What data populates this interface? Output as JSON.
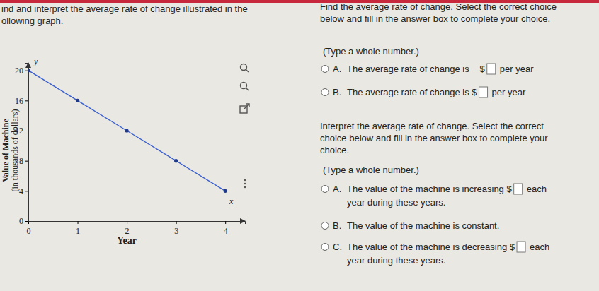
{
  "chart_data": {
    "type": "line",
    "x": [
      0,
      1,
      2,
      3,
      4
    ],
    "values": [
      20,
      16,
      12,
      8,
      4
    ],
    "x_label": "Year",
    "y_label": [
      "Value of Machine",
      "(in thousands of dollars)"
    ],
    "axis_letters": {
      "x": "x",
      "y": "y"
    },
    "xlim": [
      0,
      4.4
    ],
    "ylim": [
      0,
      21
    ],
    "xticks": [
      0,
      1,
      2,
      3,
      4
    ],
    "yticks": [
      0,
      4,
      8,
      12,
      16,
      20
    ],
    "color": "#3a5fcd",
    "marker": "circle",
    "grid": false
  },
  "page": {
    "header_left": [
      "ind and interpret the average rate of change illustrated in the",
      "ollowing graph."
    ],
    "question1": {
      "prompt": [
        "Find the average rate of change. Select the correct choice",
        "below and fill in the answer box to complete your choice."
      ],
      "hint": "(Type a whole number.)",
      "choices": [
        {
          "letter": "A.",
          "text": "The average rate of change is − $",
          "suffix": "per year"
        },
        {
          "letter": "B.",
          "text": "The average rate of change is $",
          "suffix": "per year"
        }
      ]
    },
    "question2": {
      "prompt": [
        "Interpret the average rate of change. Select the correct",
        "choice below and fill in the answer box to complete your",
        "choice."
      ],
      "hint": "(Type a whole number.)",
      "choices": [
        {
          "letter": "A.",
          "text": "The value of the machine is increasing $",
          "suffix": "each",
          "line2": "year during these years."
        },
        {
          "letter": "B.",
          "text": "The value of the machine is constant."
        },
        {
          "letter": "C.",
          "text": "The value of the machine is decreasing $",
          "suffix": "each",
          "line2": "year during these years."
        }
      ]
    }
  }
}
